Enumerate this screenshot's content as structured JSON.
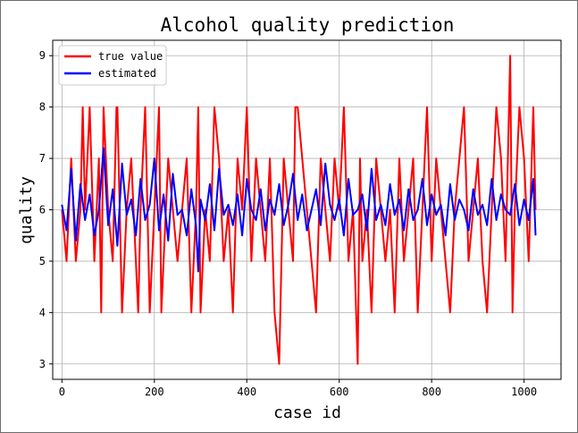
{
  "chart_data": {
    "type": "line",
    "title": "Alcohol quality prediction",
    "xlabel": "case id",
    "ylabel": "quality",
    "xlim": [
      -20,
      1080
    ],
    "ylim": [
      2.7,
      9.3
    ],
    "xticks": [
      0,
      200,
      400,
      600,
      800,
      1000
    ],
    "yticks": [
      3,
      4,
      5,
      6,
      7,
      8,
      9
    ],
    "grid": true,
    "legend_position": "top-left",
    "colors": {
      "true_value": "#ff0000",
      "estimated": "#0000ff"
    },
    "series": [
      {
        "name": "true value",
        "color": "#ff0000",
        "x": [
          0,
          10,
          20,
          30,
          40,
          45,
          50,
          60,
          70,
          80,
          85,
          90,
          100,
          110,
          118,
          120,
          130,
          140,
          150,
          160,
          165,
          170,
          180,
          190,
          200,
          210,
          215,
          220,
          230,
          240,
          250,
          260,
          270,
          280,
          290,
          295,
          300,
          310,
          320,
          330,
          340,
          350,
          360,
          370,
          380,
          390,
          400,
          410,
          420,
          430,
          440,
          450,
          460,
          470,
          480,
          490,
          500,
          505,
          510,
          520,
          530,
          540,
          550,
          560,
          570,
          580,
          590,
          600,
          610,
          620,
          630,
          640,
          645,
          650,
          660,
          670,
          680,
          690,
          700,
          710,
          720,
          730,
          740,
          750,
          760,
          770,
          780,
          790,
          800,
          810,
          820,
          830,
          840,
          850,
          860,
          870,
          880,
          890,
          900,
          910,
          920,
          930,
          940,
          950,
          960,
          970,
          975,
          980,
          990,
          1000,
          1010,
          1020,
          1025
        ],
        "y": [
          6,
          5,
          7,
          5,
          6,
          8,
          6,
          8,
          5,
          7,
          4,
          8,
          6,
          5,
          8,
          8,
          4,
          6,
          7,
          5,
          4,
          6,
          8,
          4,
          6,
          8,
          4,
          5,
          7,
          6,
          5,
          6,
          7,
          4,
          6,
          8,
          4,
          6,
          5,
          8,
          7,
          5,
          6,
          4,
          7,
          6,
          8,
          5,
          7,
          6,
          5,
          7,
          4,
          3,
          7,
          6,
          5,
          8,
          8,
          7,
          6,
          5,
          4,
          7,
          6,
          5,
          7,
          6,
          8,
          5,
          6,
          3,
          7,
          5,
          6,
          4,
          7,
          6,
          5,
          6,
          4,
          7,
          5,
          6,
          7,
          4,
          6,
          8,
          5,
          7,
          6,
          5,
          4,
          6,
          7,
          8,
          5,
          6,
          7,
          5,
          4,
          6,
          8,
          7,
          5,
          9,
          4,
          6,
          8,
          7,
          5,
          8,
          6
        ]
      },
      {
        "name": "estimated",
        "color": "#0000ff",
        "x": [
          0,
          10,
          20,
          30,
          40,
          50,
          60,
          70,
          80,
          90,
          100,
          110,
          120,
          130,
          140,
          150,
          160,
          170,
          180,
          190,
          200,
          210,
          220,
          230,
          240,
          250,
          260,
          270,
          280,
          290,
          295,
          300,
          310,
          320,
          330,
          340,
          350,
          360,
          370,
          380,
          390,
          400,
          410,
          420,
          430,
          440,
          450,
          460,
          470,
          480,
          490,
          500,
          510,
          520,
          530,
          540,
          550,
          560,
          570,
          580,
          590,
          600,
          610,
          620,
          630,
          640,
          650,
          660,
          670,
          680,
          690,
          700,
          710,
          720,
          730,
          740,
          750,
          760,
          770,
          780,
          790,
          800,
          810,
          820,
          830,
          840,
          850,
          860,
          870,
          880,
          890,
          900,
          910,
          920,
          930,
          940,
          950,
          960,
          970,
          980,
          990,
          1000,
          1010,
          1020,
          1025
        ],
        "y": [
          6.1,
          5.6,
          6.8,
          5.4,
          6.5,
          5.8,
          6.3,
          5.5,
          6.0,
          7.2,
          5.7,
          6.4,
          5.3,
          6.9,
          5.9,
          6.2,
          5.5,
          6.6,
          5.8,
          6.1,
          7.0,
          5.6,
          6.3,
          5.4,
          6.7,
          5.9,
          6.0,
          5.5,
          6.4,
          5.7,
          4.8,
          6.2,
          5.8,
          6.5,
          5.6,
          6.8,
          5.9,
          6.1,
          5.7,
          6.3,
          5.5,
          6.6,
          6.0,
          5.8,
          6.4,
          5.6,
          6.2,
          5.9,
          6.5,
          5.7,
          6.1,
          6.7,
          5.8,
          6.3,
          5.6,
          6.0,
          6.4,
          5.7,
          6.9,
          6.1,
          5.8,
          6.2,
          5.5,
          6.6,
          5.9,
          6.0,
          6.3,
          5.6,
          6.8,
          5.8,
          6.1,
          5.7,
          6.5,
          5.9,
          6.2,
          5.6,
          6.4,
          5.8,
          6.0,
          6.6,
          5.7,
          6.3,
          5.9,
          6.1,
          5.5,
          6.5,
          5.8,
          6.2,
          6.0,
          5.6,
          6.4,
          5.9,
          6.1,
          5.7,
          6.6,
          5.8,
          6.3,
          6.0,
          5.9,
          6.5,
          5.7,
          6.2,
          5.8,
          6.6,
          5.5
        ]
      }
    ]
  }
}
